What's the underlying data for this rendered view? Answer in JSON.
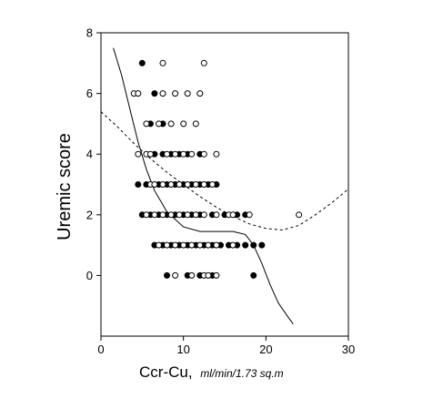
{
  "chart_data": {
    "type": "scatter",
    "title": "",
    "xlabel_main": "Ccr-Cu,",
    "xlabel_unit": "ml/min/1.73 sq.m",
    "ylabel": "Uremic score",
    "xlim": [
      0,
      30
    ],
    "ylim": [
      -2,
      8
    ],
    "x_ticks": [
      0,
      10,
      20,
      30
    ],
    "y_ticks": [
      0,
      2,
      4,
      6,
      8
    ],
    "x_tick_labels": [
      "0",
      "10",
      "20",
      "30"
    ],
    "y_tick_labels": [
      "0",
      "2",
      "4",
      "6",
      "8"
    ],
    "grid": false,
    "legend": "none",
    "colors": {
      "ink": "#000000",
      "background": "#ffffff"
    },
    "series": [
      {
        "marker": "filled",
        "points": [
          [
            5.0,
            7
          ],
          [
            6.5,
            6
          ],
          [
            6.0,
            5
          ],
          [
            7.5,
            5
          ],
          [
            6.5,
            4
          ],
          [
            7.5,
            4
          ],
          [
            8.5,
            4
          ],
          [
            9.5,
            4
          ],
          [
            10.5,
            4
          ],
          [
            12.0,
            4
          ],
          [
            4.5,
            3
          ],
          [
            5.5,
            3
          ],
          [
            7.0,
            3
          ],
          [
            8.0,
            3
          ],
          [
            9.0,
            3
          ],
          [
            10.0,
            3
          ],
          [
            11.0,
            3
          ],
          [
            12.0,
            3
          ],
          [
            13.0,
            3
          ],
          [
            14.0,
            3
          ],
          [
            5.0,
            2
          ],
          [
            6.0,
            2
          ],
          [
            7.0,
            2
          ],
          [
            8.0,
            2
          ],
          [
            9.0,
            2
          ],
          [
            10.0,
            2
          ],
          [
            11.0,
            2
          ],
          [
            12.0,
            2
          ],
          [
            13.5,
            2
          ],
          [
            15.0,
            2
          ],
          [
            16.5,
            2
          ],
          [
            17.5,
            2
          ],
          [
            6.5,
            1
          ],
          [
            7.5,
            1
          ],
          [
            8.5,
            1
          ],
          [
            9.5,
            1
          ],
          [
            10.5,
            1
          ],
          [
            11.5,
            1
          ],
          [
            12.5,
            1
          ],
          [
            13.5,
            1
          ],
          [
            14.5,
            1
          ],
          [
            15.5,
            1
          ],
          [
            16.5,
            1
          ],
          [
            17.5,
            1
          ],
          [
            18.5,
            1
          ],
          [
            19.5,
            1
          ],
          [
            8.0,
            0
          ],
          [
            10.5,
            0
          ],
          [
            12.0,
            0
          ],
          [
            13.5,
            0
          ],
          [
            18.5,
            0
          ]
        ]
      },
      {
        "marker": "open",
        "points": [
          [
            7.5,
            7
          ],
          [
            12.5,
            7
          ],
          [
            4.0,
            6
          ],
          [
            4.5,
            6
          ],
          [
            7.5,
            6
          ],
          [
            9.0,
            6
          ],
          [
            10.5,
            6
          ],
          [
            12.0,
            6
          ],
          [
            5.5,
            5
          ],
          [
            7.0,
            5
          ],
          [
            8.5,
            5
          ],
          [
            10.0,
            5
          ],
          [
            11.5,
            5
          ],
          [
            4.5,
            4
          ],
          [
            5.5,
            4
          ],
          [
            6.0,
            4
          ],
          [
            8.0,
            4
          ],
          [
            9.0,
            4
          ],
          [
            10.0,
            4
          ],
          [
            11.0,
            4
          ],
          [
            12.5,
            4
          ],
          [
            14.0,
            4
          ],
          [
            6.0,
            3
          ],
          [
            6.5,
            3
          ],
          [
            7.5,
            3
          ],
          [
            8.5,
            3
          ],
          [
            9.5,
            3
          ],
          [
            10.5,
            3
          ],
          [
            11.5,
            3
          ],
          [
            12.5,
            3
          ],
          [
            13.5,
            3
          ],
          [
            5.5,
            2
          ],
          [
            6.5,
            2
          ],
          [
            7.5,
            2
          ],
          [
            8.5,
            2
          ],
          [
            9.5,
            2
          ],
          [
            10.5,
            2
          ],
          [
            11.5,
            2
          ],
          [
            12.5,
            2
          ],
          [
            14.0,
            2
          ],
          [
            15.5,
            2
          ],
          [
            16.0,
            2
          ],
          [
            18.0,
            2
          ],
          [
            24.0,
            2
          ],
          [
            7.0,
            1
          ],
          [
            8.0,
            1
          ],
          [
            9.0,
            1
          ],
          [
            10.0,
            1
          ],
          [
            11.0,
            1
          ],
          [
            12.0,
            1
          ],
          [
            13.0,
            1
          ],
          [
            14.0,
            1
          ],
          [
            16.0,
            1
          ],
          [
            9.0,
            0
          ],
          [
            11.0,
            0
          ],
          [
            12.5,
            0
          ],
          [
            13.0,
            0
          ],
          [
            14.0,
            0
          ]
        ]
      }
    ],
    "curves": [
      {
        "style": "solid",
        "x": [
          1.5,
          2.5,
          3.5,
          4.5,
          5.5,
          6.5,
          8.0,
          10.0,
          12.0,
          14.0,
          16.0,
          17.5,
          18.5,
          19.5,
          20.5,
          21.5,
          22.5,
          23.3
        ],
        "y": [
          7.5,
          6.6,
          5.5,
          4.4,
          3.5,
          2.8,
          2.1,
          1.6,
          1.45,
          1.45,
          1.45,
          1.35,
          1.0,
          0.4,
          -0.3,
          -0.9,
          -1.3,
          -1.6
        ]
      },
      {
        "style": "dashed",
        "x": [
          0,
          2,
          4,
          6,
          8,
          10,
          12,
          14,
          16,
          18,
          20,
          22,
          24,
          26,
          28,
          30
        ],
        "y": [
          5.4,
          4.9,
          4.35,
          3.85,
          3.4,
          3.0,
          2.6,
          2.25,
          1.95,
          1.7,
          1.55,
          1.5,
          1.65,
          2.0,
          2.4,
          2.85
        ]
      }
    ]
  }
}
